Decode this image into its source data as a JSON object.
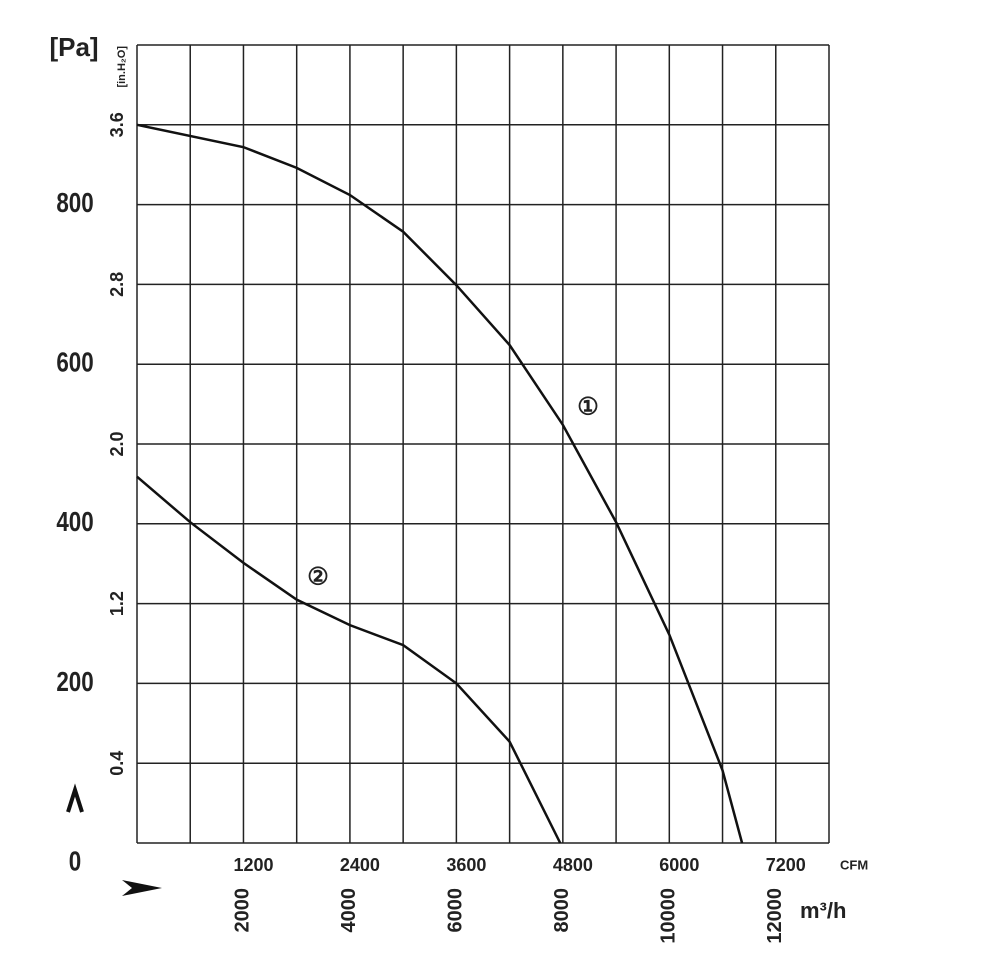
{
  "chart_data": {
    "type": "line",
    "y_label": "[Pa]",
    "y2_label": "[in.H₂O]",
    "x_unit": "CFM",
    "x2_unit": "m³/h",
    "xlim": [
      0,
      7800
    ],
    "xticks": [
      1200,
      2400,
      3600,
      4800,
      6000,
      7200
    ],
    "x2lim": [
      0,
      13000
    ],
    "x2ticks": [
      2000,
      4000,
      6000,
      8000,
      10000,
      12000
    ],
    "ylim": [
      0,
      1000
    ],
    "yticks": [
      0,
      200,
      400,
      600,
      800
    ],
    "y2lim": [
      0,
      4.0
    ],
    "y2ticks": [
      0.4,
      1.2,
      {
        "value": 2,
        "label": "2.0"
      },
      2.8,
      3.6
    ],
    "xgridlines": [
      0,
      600,
      1200,
      1800,
      2400,
      3000,
      3600,
      4200,
      4800,
      5400,
      6000,
      6600,
      7200,
      7800
    ],
    "ygridlines": [
      0,
      100,
      200,
      300,
      400,
      500,
      600,
      700,
      800,
      900,
      1000
    ],
    "grid": true,
    "series": [
      {
        "name": "①",
        "color": "#111111",
        "x": [
          0,
          1200,
          1800,
          2400,
          3000,
          3600,
          4200,
          4800,
          5400,
          6000,
          6600,
          6820
        ],
        "values": [
          900,
          872,
          846,
          812,
          766,
          699,
          624,
          524,
          402,
          261,
          91,
          0
        ]
      },
      {
        "name": "②",
        "color": "#111111",
        "x": [
          0,
          600,
          1200,
          1800,
          2400,
          3000,
          3600,
          4200,
          4770
        ],
        "values": [
          459,
          402,
          351,
          305,
          273,
          248,
          200,
          127,
          0
        ]
      }
    ]
  }
}
